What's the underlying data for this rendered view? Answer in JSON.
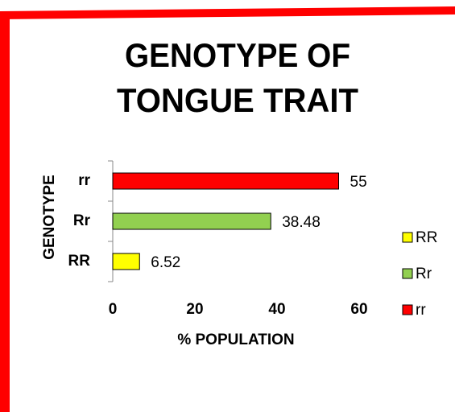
{
  "chart_data": {
    "type": "bar",
    "orientation": "horizontal",
    "title": [
      "GENOTYPE OF",
      "TONGUE TRAIT"
    ],
    "x_label": "% POPULATION",
    "y_label": "GENOTYPE",
    "categories": [
      "RR",
      "Rr",
      "rr"
    ],
    "values": [
      6.52,
      38.48,
      55
    ],
    "colors": [
      "#ffff00",
      "#92d050",
      "#ff0000"
    ],
    "xlim": [
      0,
      60
    ],
    "xticks": [
      0,
      20,
      40,
      60
    ],
    "legend": "right"
  }
}
